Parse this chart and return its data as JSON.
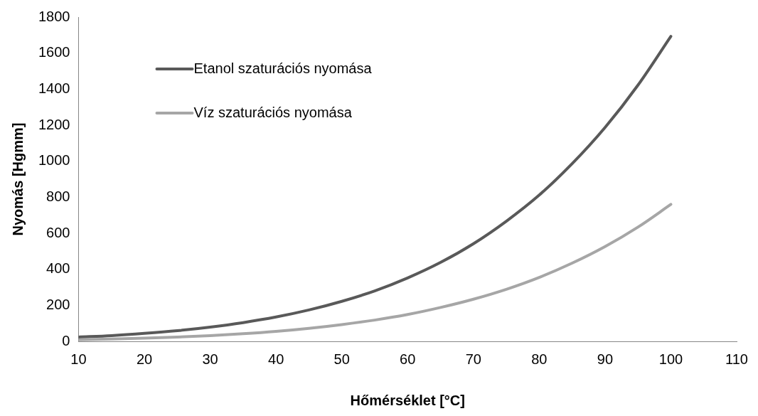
{
  "chart_data": {
    "type": "line",
    "xlabel": "Hőmérséklet [°C]",
    "ylabel": "Nyomás [Hgmm]",
    "x": [
      10,
      15,
      20,
      25,
      30,
      35,
      40,
      45,
      50,
      55,
      60,
      65,
      70,
      75,
      80,
      85,
      90,
      95,
      100
    ],
    "series": [
      {
        "name": "Etanol szaturációs nyomása",
        "color": "#595959",
        "values": [
          24,
          32,
          44,
          59,
          79,
          104,
          135,
          174,
          222,
          280,
          352,
          438,
          542,
          667,
          812,
          986,
          1187,
          1422,
          1693
        ]
      },
      {
        "name": "Víz szaturációs nyomása",
        "color": "#a6a6a6",
        "values": [
          9,
          13,
          18,
          24,
          32,
          42,
          55,
          72,
          93,
          118,
          149,
          188,
          234,
          289,
          355,
          434,
          526,
          634,
          760
        ]
      }
    ],
    "xlim": [
      10,
      110
    ],
    "xticks": [
      10,
      20,
      30,
      40,
      50,
      60,
      70,
      80,
      90,
      100,
      110
    ],
    "ylim": [
      0,
      1800
    ],
    "yticks": [
      0,
      200,
      400,
      600,
      800,
      1000,
      1200,
      1400,
      1600,
      1800
    ],
    "grid": false,
    "legend": "top left",
    "marker": "none",
    "line_style": "solid"
  }
}
